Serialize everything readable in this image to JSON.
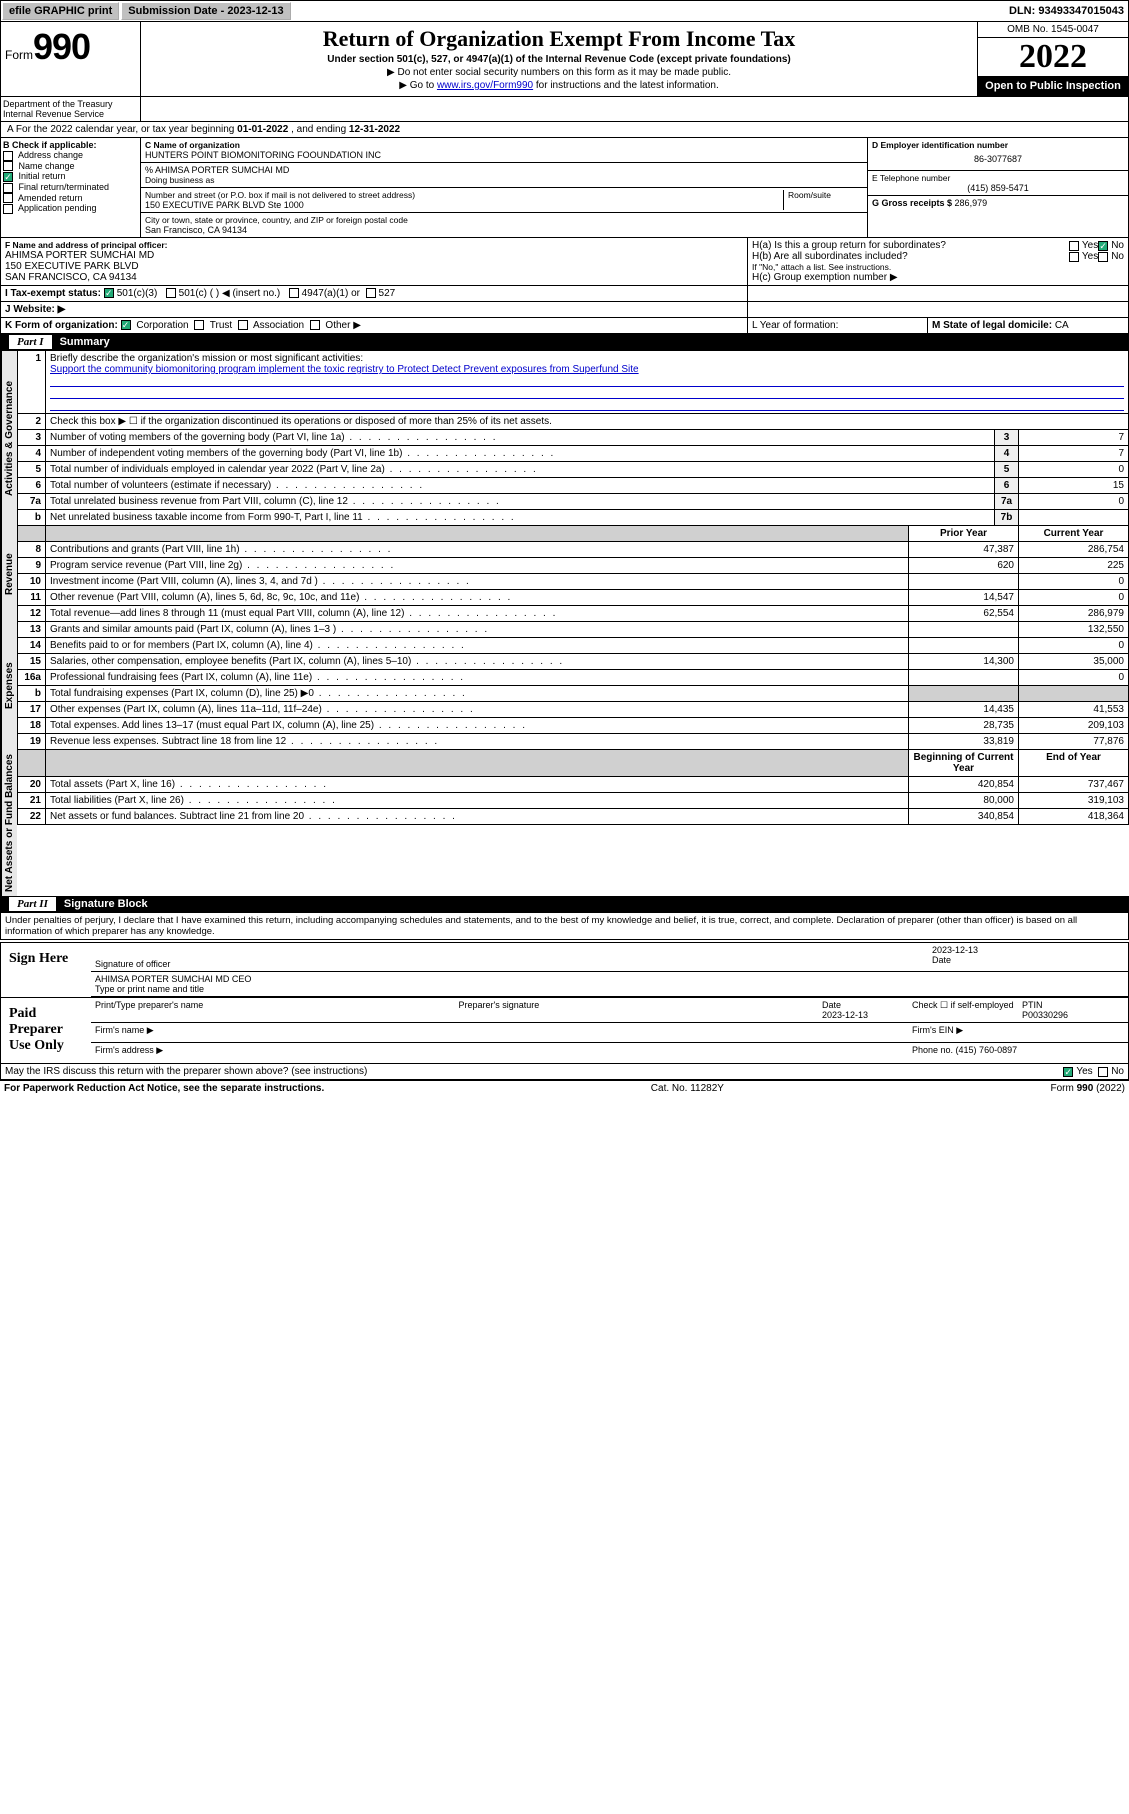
{
  "topbar": {
    "efile": "efile GRAPHIC print",
    "sub_label": "Submission Date - 2023-12-13",
    "dln_label": "DLN: 93493347015043"
  },
  "header": {
    "form_word": "Form",
    "form_num": "990",
    "title": "Return of Organization Exempt From Income Tax",
    "subtitle": "Under section 501(c), 527, or 4947(a)(1) of the Internal Revenue Code (except private foundations)",
    "note1": "▶ Do not enter social security numbers on this form as it may be made public.",
    "note2_pre": "▶ Go to ",
    "note2_link": "www.irs.gov/Form990",
    "note2_post": " for instructions and the latest information.",
    "omb": "OMB No. 1545-0047",
    "year": "2022",
    "open_public": "Open to Public Inspection",
    "dept": "Department of the Treasury",
    "irs": "Internal Revenue Service"
  },
  "lineA": {
    "text_pre": "A For the 2022 calendar year, or tax year beginning ",
    "begin": "01-01-2022",
    "mid": " , and ending ",
    "end": "12-31-2022"
  },
  "colB": {
    "header": "B Check if applicable:",
    "items": [
      "Address change",
      "Name change",
      "Initial return",
      "Final return/terminated",
      "Amended return",
      "Application pending"
    ],
    "checked_idx": 2
  },
  "colC": {
    "name_label": "C Name of organization",
    "org_name": "HUNTERS POINT BIOMONITORING FOOUNDATION INC",
    "care_of": "% AHIMSA PORTER SUMCHAI MD",
    "dba_label": "Doing business as",
    "addr_label": "Number and street (or P.O. box if mail is not delivered to street address)",
    "addr": "150 EXECUTIVE PARK BLVD Ste 1000",
    "room_label": "Room/suite",
    "city_label": "City or town, state or province, country, and ZIP or foreign postal code",
    "city": "San Francisco, CA  94134"
  },
  "colD": {
    "ein_label": "D Employer identification number",
    "ein": "86-3077687",
    "phone_label": "E Telephone number",
    "phone": "(415) 859-5471",
    "gross_label": "G Gross receipts $ ",
    "gross": "286,979"
  },
  "rowF": {
    "label": "F  Name and address of principal officer:",
    "name": "AHIMSA PORTER SUMCHAI MD",
    "addr1": "150 EXECUTIVE PARK BLVD",
    "addr2": "SAN FRANCISCO, CA  94134"
  },
  "rowH": {
    "ha": "H(a)  Is this a group return for subordinates?",
    "hb": "H(b)  Are all subordinates included?",
    "hb_note": "If \"No,\" attach a list. See instructions.",
    "hc": "H(c)  Group exemption number ▶",
    "yes": "Yes",
    "no": "No"
  },
  "rowI": {
    "label": "I   Tax-exempt status:",
    "opt1": "501(c)(3)",
    "opt2": "501(c) (  ) ◀ (insert no.)",
    "opt3": "4947(a)(1) or",
    "opt4": "527"
  },
  "rowJ": {
    "label": "J   Website: ▶"
  },
  "rowK": {
    "label": "K Form of organization:",
    "opts": [
      "Corporation",
      "Trust",
      "Association",
      "Other ▶"
    ],
    "l_label": "L Year of formation:",
    "m_label": "M State of legal domicile: ",
    "m_val": "CA"
  },
  "part1": {
    "header_part": "Part I",
    "header_title": "Summary",
    "q1": "Briefly describe the organization's mission or most significant activities:",
    "mission": "Support the community biomonitoring program implement the toxic regristry to Protect Detect Prevent exposures from Superfund Site",
    "q2": "Check this box ▶ ☐  if the organization discontinued its operations or disposed of more than 25% of its net assets."
  },
  "sections": {
    "activities": "Activities & Governance",
    "revenue": "Revenue",
    "expenses": "Expenses",
    "netassets": "Net Assets or Fund Balances"
  },
  "gov_rows": [
    {
      "n": "3",
      "t": "Number of voting members of the governing body (Part VI, line 1a)",
      "box": "3",
      "v": "7"
    },
    {
      "n": "4",
      "t": "Number of independent voting members of the governing body (Part VI, line 1b)",
      "box": "4",
      "v": "7"
    },
    {
      "n": "5",
      "t": "Total number of individuals employed in calendar year 2022 (Part V, line 2a)",
      "box": "5",
      "v": "0"
    },
    {
      "n": "6",
      "t": "Total number of volunteers (estimate if necessary)",
      "box": "6",
      "v": "15"
    },
    {
      "n": "7a",
      "t": "Total unrelated business revenue from Part VIII, column (C), line 12",
      "box": "7a",
      "v": "0"
    },
    {
      "n": "b",
      "t": "Net unrelated business taxable income from Form 990-T, Part I, line 11",
      "box": "7b",
      "v": ""
    }
  ],
  "two_col_header": {
    "prior": "Prior Year",
    "current": "Current Year"
  },
  "rev_rows": [
    {
      "n": "8",
      "t": "Contributions and grants (Part VIII, line 1h)",
      "p": "47,387",
      "c": "286,754"
    },
    {
      "n": "9",
      "t": "Program service revenue (Part VIII, line 2g)",
      "p": "620",
      "c": "225"
    },
    {
      "n": "10",
      "t": "Investment income (Part VIII, column (A), lines 3, 4, and 7d )",
      "p": "",
      "c": "0"
    },
    {
      "n": "11",
      "t": "Other revenue (Part VIII, column (A), lines 5, 6d, 8c, 9c, 10c, and 11e)",
      "p": "14,547",
      "c": "0"
    },
    {
      "n": "12",
      "t": "Total revenue—add lines 8 through 11 (must equal Part VIII, column (A), line 12)",
      "p": "62,554",
      "c": "286,979"
    }
  ],
  "exp_rows": [
    {
      "n": "13",
      "t": "Grants and similar amounts paid (Part IX, column (A), lines 1–3 )",
      "p": "",
      "c": "132,550"
    },
    {
      "n": "14",
      "t": "Benefits paid to or for members (Part IX, column (A), line 4)",
      "p": "",
      "c": "0"
    },
    {
      "n": "15",
      "t": "Salaries, other compensation, employee benefits (Part IX, column (A), lines 5–10)",
      "p": "14,300",
      "c": "35,000"
    },
    {
      "n": "16a",
      "t": "Professional fundraising fees (Part IX, column (A), line 11e)",
      "p": "",
      "c": "0"
    },
    {
      "n": "b",
      "t": "Total fundraising expenses (Part IX, column (D), line 25) ▶0",
      "p": "GREY",
      "c": "GREY"
    },
    {
      "n": "17",
      "t": "Other expenses (Part IX, column (A), lines 11a–11d, 11f–24e)",
      "p": "14,435",
      "c": "41,553"
    },
    {
      "n": "18",
      "t": "Total expenses. Add lines 13–17 (must equal Part IX, column (A), line 25)",
      "p": "28,735",
      "c": "209,103"
    },
    {
      "n": "19",
      "t": "Revenue less expenses. Subtract line 18 from line 12",
      "p": "33,819",
      "c": "77,876"
    }
  ],
  "na_header": {
    "begin": "Beginning of Current Year",
    "end": "End of Year"
  },
  "na_rows": [
    {
      "n": "20",
      "t": "Total assets (Part X, line 16)",
      "p": "420,854",
      "c": "737,467"
    },
    {
      "n": "21",
      "t": "Total liabilities (Part X, line 26)",
      "p": "80,000",
      "c": "319,103"
    },
    {
      "n": "22",
      "t": "Net assets or fund balances. Subtract line 21 from line 20",
      "p": "340,854",
      "c": "418,364"
    }
  ],
  "part2": {
    "header_part": "Part II",
    "header_title": "Signature Block",
    "penalty": "Under penalties of perjury, I declare that I have examined this return, including accompanying schedules and statements, and to the best of my knowledge and belief, it is true, correct, and complete. Declaration of preparer (other than officer) is based on all information of which preparer has any knowledge."
  },
  "sign": {
    "label": "Sign Here",
    "sig_of_officer": "Signature of officer",
    "date_label": "Date",
    "date": "2023-12-13",
    "name_title": "AHIMSA PORTER SUMCHAI MD CEO",
    "type_label": "Type or print name and title"
  },
  "paid": {
    "label": "Paid Preparer Use Only",
    "col1": "Print/Type preparer's name",
    "col2": "Preparer's signature",
    "col3": "Date",
    "date": "2023-12-13",
    "check_label": "Check ☐ if self-employed",
    "ptin_label": "PTIN",
    "ptin": "P00330296",
    "firm_name": "Firm's name   ▶",
    "firm_ein": "Firm's EIN ▶",
    "firm_addr": "Firm's address ▶",
    "phone_label": "Phone no. ",
    "phone": "(415) 760-0897"
  },
  "footer": {
    "discuss": "May the IRS discuss this return with the preparer shown above? (see instructions)",
    "yes": "Yes",
    "no": "No",
    "paperwork": "For Paperwork Reduction Act Notice, see the separate instructions.",
    "cat": "Cat. No. 11282Y",
    "form": "Form 990 (2022)"
  }
}
